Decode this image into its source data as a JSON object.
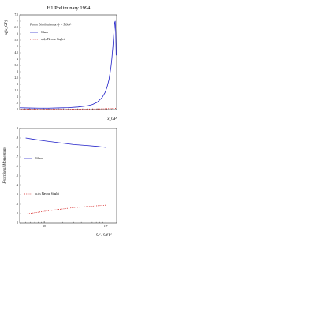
{
  "figure": {
    "title": "H1 Preliminary 1994"
  },
  "colors": {
    "gluon": "#1f1fc8",
    "singlet": "#d41f1f",
    "axis": "#000000"
  },
  "chart_data": [
    {
      "type": "line",
      "id": "top",
      "title": "",
      "xlabel": "x_GP",
      "ylabel": "xf(x_GP)",
      "xlim": [
        0,
        1
      ],
      "ylim": [
        0,
        7.5
      ],
      "yticks": [
        "0",
        ".5",
        "1",
        "1.5",
        "2",
        "2.5",
        "3",
        "3.5",
        "4",
        "4.5",
        "5",
        "5.5",
        "6",
        "6.5",
        "7",
        "7.5"
      ],
      "legend_header": "Parton Distributions at Q² = 5 GeV²",
      "legend_position": "top-left",
      "grid": false,
      "series": [
        {
          "name": "Gluon",
          "color": "gluon",
          "dash": "solid",
          "x": [
            0.0,
            0.1,
            0.2,
            0.3,
            0.4,
            0.5,
            0.6,
            0.7,
            0.75,
            0.8,
            0.85,
            0.88,
            0.9,
            0.92,
            0.94,
            0.95,
            0.96,
            0.97,
            0.98,
            0.985,
            0.99,
            0.995
          ],
          "y": [
            0.14,
            0.12,
            0.11,
            0.11,
            0.13,
            0.15,
            0.2,
            0.3,
            0.4,
            0.58,
            0.95,
            1.35,
            1.75,
            2.35,
            3.3,
            4.0,
            4.9,
            6.0,
            6.9,
            7.0,
            6.2,
            4.3
          ]
        },
        {
          "name": "u,d,s Flavour Singlet",
          "color": "singlet",
          "dash": "dotted",
          "x": [
            0.0,
            0.2,
            0.4,
            0.6,
            0.8,
            0.9,
            1.0
          ],
          "y": [
            0.03,
            0.025,
            0.02,
            0.03,
            0.05,
            0.07,
            0.1
          ]
        }
      ]
    },
    {
      "type": "line",
      "id": "bottom",
      "title": "",
      "xlabel": "Q² / GeV²",
      "ylabel": "Fractional Momentum",
      "xscale": "log",
      "xlim": [
        4,
        150
      ],
      "ylim": [
        0,
        1
      ],
      "xticks": [
        "10",
        "10²"
      ],
      "yticks": [
        "0",
        ".1",
        ".2",
        ".3",
        ".4",
        ".5",
        ".6",
        ".7",
        ".8",
        ".9",
        "1"
      ],
      "legend_position": "left",
      "grid": false,
      "series": [
        {
          "name": "Gluon",
          "color": "gluon",
          "dash": "solid",
          "x": [
            5,
            7,
            10,
            15,
            20,
            30,
            50,
            75,
            100
          ],
          "y": [
            0.9,
            0.885,
            0.87,
            0.855,
            0.845,
            0.83,
            0.82,
            0.81,
            0.8
          ]
        },
        {
          "name": "u,d,s Flavour Singlet",
          "color": "singlet",
          "dash": "dotted",
          "x": [
            5,
            7,
            10,
            15,
            20,
            30,
            50,
            75,
            100
          ],
          "y": [
            0.095,
            0.11,
            0.125,
            0.14,
            0.15,
            0.165,
            0.175,
            0.185,
            0.19
          ]
        }
      ]
    }
  ]
}
